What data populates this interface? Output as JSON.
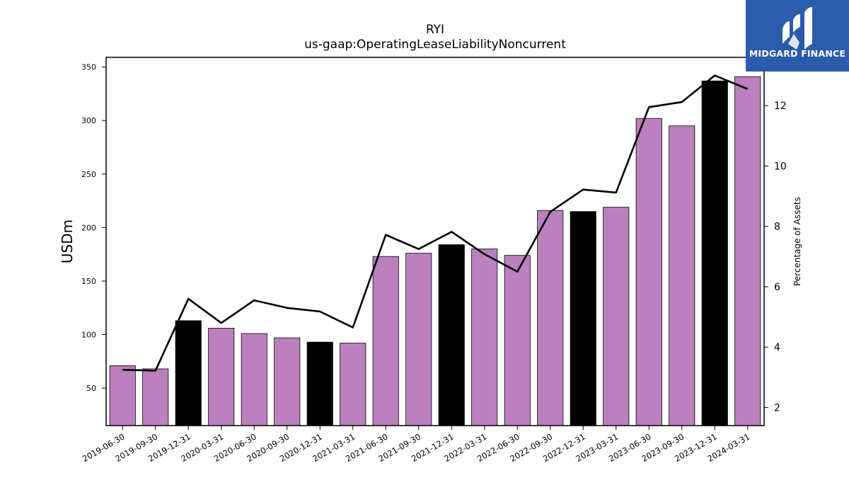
{
  "chart_data": {
    "type": "bar",
    "title": "RYI",
    "subtitle": "us-gaap:OperatingLeaseLiabilityNoncurrent",
    "ylabel": "USDm",
    "y2label": "Percentage of Assets",
    "categories": [
      "2019-06-30",
      "2019-09-30",
      "2019-12-31",
      "2020-03-31",
      "2020-06-30",
      "2020-09-30",
      "2020-12-31",
      "2021-03-31",
      "2021-06-30",
      "2021-09-30",
      "2021-12-31",
      "2022-03-31",
      "2022-06-30",
      "2022-09-30",
      "2022-12-31",
      "2023-03-31",
      "2023-06-30",
      "2023-09-30",
      "2023-12-31",
      "2024-03-31"
    ],
    "series": [
      {
        "values": [
          71,
          68,
          113,
          106,
          101,
          97,
          93,
          92,
          173,
          176,
          184,
          180,
          174,
          216,
          215,
          219,
          302,
          295,
          337,
          341
        ],
        "colors": [
          "#bb80bd",
          "#bb80bd",
          "#000000",
          "#bb80bd",
          "#bb80bd",
          "#bb80bd",
          "#000000",
          "#bb80bd",
          "#bb80bd",
          "#bb80bd",
          "#000000",
          "#bb80bd",
          "#bb80bd",
          "#bb80bd",
          "#000000",
          "#bb80bd",
          "#bb80bd",
          "#bb80bd",
          "#000000",
          "#bb80bd"
        ]
      },
      {
        "type": "line",
        "axis": "right",
        "color": "#000000",
        "values": [
          3.25,
          3.22,
          5.6,
          4.8,
          5.55,
          5.3,
          5.18,
          4.65,
          7.72,
          7.25,
          7.82,
          7.08,
          6.5,
          8.48,
          9.22,
          9.12,
          11.95,
          12.12,
          13.0,
          12.55
        ]
      }
    ],
    "ylim": [
      15,
      359
    ],
    "y2lim": [
      1.4,
      13.6
    ],
    "yticks": [
      50,
      100,
      150,
      200,
      250,
      300,
      350
    ],
    "y2ticks": [
      2,
      4,
      6,
      8,
      10,
      12
    ],
    "grid": false,
    "legend": "none"
  },
  "logo": {
    "text": "MIDGARD FINANCE",
    "bg": "#2b5bab"
  }
}
